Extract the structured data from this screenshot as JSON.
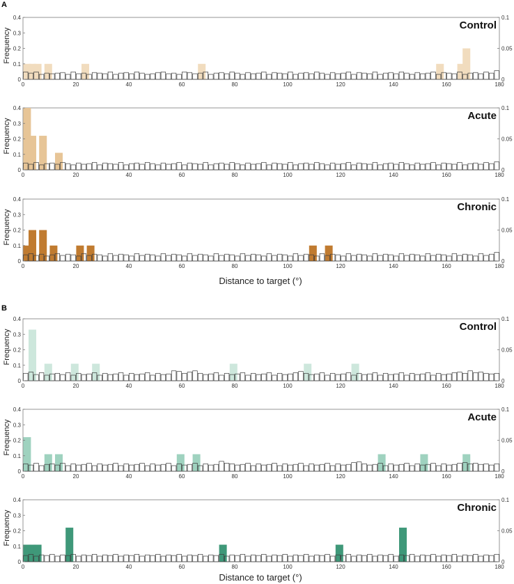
{
  "figure": {
    "panel_a_letter": "A",
    "panel_b_letter": "B",
    "x_axis_title": "Distance to target (°)",
    "y_axis_title": "Frequency"
  },
  "colors": {
    "a_control": "#f1dcbe",
    "a_acute": "#e7c597",
    "a_chronic": "#c07b30",
    "b_control": "#cde7dc",
    "b_acute": "#9fd2bf",
    "b_chronic": "#3f9879",
    "outline": "#3a3a3a",
    "axis": "#7a7a7a"
  },
  "chart_data": [
    {
      "type": "bar",
      "panel": "A",
      "title": "Control",
      "xlabel": "",
      "ylabel": "Frequency",
      "xlim": [
        0,
        180
      ],
      "xticks": [
        "0",
        "20",
        "40",
        "60",
        "80",
        "100",
        "120",
        "140",
        "160",
        "180"
      ],
      "ylim_left": [
        0,
        0.4
      ],
      "yticks_left": [
        "0",
        "0.1",
        "0.2",
        "0.3",
        "0.4"
      ],
      "ylim_right": [
        0,
        0.1
      ],
      "yticks_right": [
        "0",
        "0.05",
        "0.1"
      ],
      "series": [
        {
          "name": "subject",
          "axis": "left",
          "color_key": "a_control",
          "x": [
            0,
            2,
            4,
            8,
            22,
            66,
            156,
            164,
            166
          ],
          "values": [
            0.1,
            0.1,
            0.1,
            0.1,
            0.1,
            0.1,
            0.1,
            0.1,
            0.2
          ]
        },
        {
          "name": "reference",
          "axis": "right",
          "outline": true,
          "values": [
            0.012,
            0.01,
            0.012,
            0.008,
            0.01,
            0.009,
            0.01,
            0.011,
            0.008,
            0.012,
            0.009,
            0.01,
            0.008,
            0.011,
            0.01,
            0.009,
            0.012,
            0.008,
            0.01,
            0.011,
            0.009,
            0.012,
            0.01,
            0.008,
            0.009,
            0.011,
            0.012,
            0.009,
            0.01,
            0.008,
            0.012,
            0.011,
            0.009,
            0.01,
            0.012,
            0.008,
            0.01,
            0.011,
            0.009,
            0.012,
            0.01,
            0.008,
            0.011,
            0.009,
            0.01,
            0.012,
            0.008,
            0.011,
            0.01,
            0.009,
            0.012,
            0.008,
            0.01,
            0.011,
            0.009,
            0.012,
            0.01,
            0.008,
            0.011,
            0.009,
            0.01,
            0.012,
            0.008,
            0.011,
            0.01,
            0.009,
            0.012,
            0.008,
            0.01,
            0.011,
            0.009,
            0.012,
            0.01,
            0.008,
            0.011,
            0.009,
            0.01,
            0.012,
            0.008,
            0.011,
            0.01,
            0.009,
            0.012,
            0.008,
            0.01,
            0.011,
            0.009,
            0.012,
            0.01,
            0.014
          ]
        }
      ]
    },
    {
      "type": "bar",
      "panel": "A",
      "title": "Acute",
      "xlabel": "",
      "ylabel": "Frequency",
      "xlim": [
        0,
        180
      ],
      "xticks": [
        "0",
        "20",
        "40",
        "60",
        "80",
        "100",
        "120",
        "140",
        "160",
        "180"
      ],
      "ylim_left": [
        0,
        0.4
      ],
      "yticks_left": [
        "0",
        "0.1",
        "0.2",
        "0.3",
        "0.4"
      ],
      "ylim_right": [
        0,
        0.1
      ],
      "yticks_right": [
        "0",
        "0.05",
        "0.1"
      ],
      "series": [
        {
          "name": "subject",
          "axis": "left",
          "color_key": "a_acute",
          "x": [
            0,
            2,
            6,
            12
          ],
          "values": [
            0.4,
            0.22,
            0.22,
            0.11
          ]
        },
        {
          "name": "reference",
          "axis": "right",
          "outline": true,
          "values": [
            0.011,
            0.009,
            0.012,
            0.008,
            0.01,
            0.011,
            0.009,
            0.012,
            0.01,
            0.008,
            0.011,
            0.009,
            0.01,
            0.012,
            0.008,
            0.011,
            0.01,
            0.009,
            0.012,
            0.008,
            0.01,
            0.011,
            0.009,
            0.012,
            0.01,
            0.008,
            0.011,
            0.009,
            0.01,
            0.012,
            0.008,
            0.011,
            0.01,
            0.009,
            0.012,
            0.008,
            0.01,
            0.011,
            0.009,
            0.012,
            0.01,
            0.008,
            0.011,
            0.009,
            0.01,
            0.012,
            0.008,
            0.011,
            0.01,
            0.009,
            0.012,
            0.008,
            0.01,
            0.011,
            0.009,
            0.012,
            0.01,
            0.008,
            0.011,
            0.009,
            0.01,
            0.012,
            0.008,
            0.011,
            0.01,
            0.009,
            0.012,
            0.008,
            0.01,
            0.011,
            0.009,
            0.012,
            0.01,
            0.008,
            0.011,
            0.009,
            0.01,
            0.012,
            0.008,
            0.011,
            0.01,
            0.009,
            0.012,
            0.008,
            0.01,
            0.011,
            0.009,
            0.012,
            0.01,
            0.013
          ]
        }
      ]
    },
    {
      "type": "bar",
      "panel": "A",
      "title": "Chronic",
      "xlabel": "Distance to target (°)",
      "ylabel": "Frequency",
      "xlim": [
        0,
        180
      ],
      "xticks": [
        "0",
        "20",
        "40",
        "60",
        "80",
        "100",
        "120",
        "140",
        "160",
        "180"
      ],
      "ylim_left": [
        0,
        0.4
      ],
      "yticks_left": [
        "0",
        "0.1",
        "0.2",
        "0.3",
        "0.4"
      ],
      "ylim_right": [
        0,
        0.1
      ],
      "yticks_right": [
        "0",
        "0.05",
        "0.1"
      ],
      "series": [
        {
          "name": "subject",
          "axis": "left",
          "color_key": "a_chronic",
          "x": [
            0,
            2,
            6,
            10,
            20,
            24,
            108,
            114
          ],
          "values": [
            0.1,
            0.2,
            0.2,
            0.1,
            0.1,
            0.1,
            0.1,
            0.1
          ]
        },
        {
          "name": "reference",
          "axis": "right",
          "outline": true,
          "values": [
            0.01,
            0.012,
            0.009,
            0.011,
            0.008,
            0.01,
            0.012,
            0.009,
            0.011,
            0.01,
            0.008,
            0.012,
            0.009,
            0.011,
            0.01,
            0.008,
            0.012,
            0.009,
            0.011,
            0.01,
            0.008,
            0.012,
            0.009,
            0.011,
            0.01,
            0.008,
            0.012,
            0.009,
            0.011,
            0.01,
            0.008,
            0.012,
            0.009,
            0.011,
            0.01,
            0.008,
            0.012,
            0.009,
            0.011,
            0.01,
            0.008,
            0.012,
            0.009,
            0.011,
            0.01,
            0.008,
            0.012,
            0.009,
            0.011,
            0.01,
            0.008,
            0.012,
            0.009,
            0.011,
            0.01,
            0.008,
            0.012,
            0.009,
            0.011,
            0.01,
            0.008,
            0.012,
            0.009,
            0.011,
            0.01,
            0.008,
            0.012,
            0.009,
            0.011,
            0.01,
            0.008,
            0.012,
            0.009,
            0.011,
            0.01,
            0.008,
            0.012,
            0.009,
            0.011,
            0.01,
            0.008,
            0.012,
            0.009,
            0.011,
            0.01,
            0.008,
            0.012,
            0.009,
            0.011,
            0.014
          ]
        }
      ]
    },
    {
      "type": "bar",
      "panel": "B",
      "title": "Control",
      "xlabel": "",
      "ylabel": "Frequency",
      "xlim": [
        0,
        180
      ],
      "xticks": [
        "0",
        "20",
        "40",
        "60",
        "80",
        "100",
        "120",
        "140",
        "160",
        "180"
      ],
      "ylim_left": [
        0,
        0.4
      ],
      "yticks_left": [
        "0",
        "0.1",
        "0.2",
        "0.3",
        "0.4"
      ],
      "ylim_right": [
        0,
        0.1
      ],
      "yticks_right": [
        "0",
        "0.05",
        "0.1"
      ],
      "series": [
        {
          "name": "subject",
          "axis": "left",
          "color_key": "b_control",
          "x": [
            2,
            8,
            18,
            26,
            78,
            106,
            124
          ],
          "values": [
            0.33,
            0.11,
            0.11,
            0.11,
            0.11,
            0.11,
            0.11
          ]
        },
        {
          "name": "reference",
          "axis": "right",
          "outline": true,
          "values": [
            0.012,
            0.014,
            0.01,
            0.013,
            0.009,
            0.011,
            0.012,
            0.01,
            0.013,
            0.009,
            0.012,
            0.01,
            0.011,
            0.013,
            0.009,
            0.012,
            0.01,
            0.011,
            0.013,
            0.009,
            0.012,
            0.01,
            0.011,
            0.013,
            0.009,
            0.012,
            0.01,
            0.011,
            0.016,
            0.015,
            0.012,
            0.014,
            0.016,
            0.012,
            0.01,
            0.011,
            0.013,
            0.009,
            0.012,
            0.01,
            0.011,
            0.013,
            0.009,
            0.012,
            0.01,
            0.011,
            0.013,
            0.009,
            0.012,
            0.01,
            0.011,
            0.013,
            0.015,
            0.012,
            0.01,
            0.011,
            0.013,
            0.009,
            0.012,
            0.01,
            0.011,
            0.013,
            0.009,
            0.012,
            0.01,
            0.011,
            0.013,
            0.009,
            0.012,
            0.01,
            0.011,
            0.013,
            0.009,
            0.012,
            0.01,
            0.011,
            0.013,
            0.009,
            0.012,
            0.01,
            0.011,
            0.013,
            0.014,
            0.012,
            0.016,
            0.013,
            0.014,
            0.012,
            0.011,
            0.012
          ]
        }
      ]
    },
    {
      "type": "bar",
      "panel": "B",
      "title": "Acute",
      "xlabel": "",
      "ylabel": "Frequency",
      "xlim": [
        0,
        180
      ],
      "xticks": [
        "0",
        "20",
        "40",
        "60",
        "80",
        "100",
        "120",
        "140",
        "160",
        "180"
      ],
      "ylim_left": [
        0,
        0.4
      ],
      "yticks_left": [
        "0",
        "0.1",
        "0.2",
        "0.3",
        "0.4"
      ],
      "ylim_right": [
        0,
        0.1
      ],
      "yticks_right": [
        "0",
        "0.05",
        "0.1"
      ],
      "series": [
        {
          "name": "subject",
          "axis": "left",
          "color_key": "b_acute",
          "x": [
            0,
            8,
            12,
            58,
            64,
            134,
            150,
            166
          ],
          "values": [
            0.22,
            0.11,
            0.11,
            0.11,
            0.11,
            0.11,
            0.11,
            0.11
          ]
        },
        {
          "name": "reference",
          "axis": "right",
          "outline": true,
          "values": [
            0.012,
            0.01,
            0.013,
            0.009,
            0.011,
            0.012,
            0.01,
            0.013,
            0.009,
            0.012,
            0.01,
            0.011,
            0.013,
            0.009,
            0.012,
            0.01,
            0.011,
            0.013,
            0.009,
            0.012,
            0.01,
            0.011,
            0.013,
            0.009,
            0.012,
            0.01,
            0.011,
            0.013,
            0.009,
            0.012,
            0.01,
            0.011,
            0.013,
            0.009,
            0.012,
            0.01,
            0.011,
            0.016,
            0.013,
            0.012,
            0.01,
            0.011,
            0.013,
            0.009,
            0.012,
            0.01,
            0.011,
            0.013,
            0.009,
            0.012,
            0.01,
            0.011,
            0.013,
            0.009,
            0.012,
            0.01,
            0.011,
            0.013,
            0.009,
            0.012,
            0.01,
            0.011,
            0.014,
            0.015,
            0.012,
            0.01,
            0.011,
            0.013,
            0.009,
            0.012,
            0.01,
            0.011,
            0.013,
            0.009,
            0.012,
            0.01,
            0.011,
            0.013,
            0.009,
            0.012,
            0.01,
            0.011,
            0.013,
            0.014,
            0.012,
            0.013,
            0.011,
            0.012,
            0.01,
            0.012
          ]
        }
      ]
    },
    {
      "type": "bar",
      "panel": "B",
      "title": "Chronic",
      "xlabel": "Distance to target (°)",
      "ylabel": "Frequency",
      "xlim": [
        0,
        180
      ],
      "xticks": [
        "0",
        "20",
        "40",
        "60",
        "80",
        "100",
        "120",
        "140",
        "160",
        "180"
      ],
      "ylim_left": [
        0,
        0.4
      ],
      "yticks_left": [
        "0",
        "0.1",
        "0.2",
        "0.3",
        "0.4"
      ],
      "ylim_right": [
        0,
        0.1
      ],
      "yticks_right": [
        "0",
        "0.05",
        "0.1"
      ],
      "series": [
        {
          "name": "subject",
          "axis": "left",
          "color_key": "b_chronic",
          "x": [
            0,
            2,
            4,
            16,
            74,
            118,
            142
          ],
          "values": [
            0.11,
            0.11,
            0.11,
            0.22,
            0.11,
            0.11,
            0.22
          ]
        },
        {
          "name": "reference",
          "axis": "right",
          "outline": true,
          "values": [
            0.01,
            0.012,
            0.009,
            0.011,
            0.01,
            0.012,
            0.009,
            0.011,
            0.01,
            0.012,
            0.009,
            0.011,
            0.01,
            0.012,
            0.009,
            0.011,
            0.01,
            0.012,
            0.009,
            0.011,
            0.01,
            0.012,
            0.009,
            0.011,
            0.01,
            0.012,
            0.009,
            0.011,
            0.01,
            0.012,
            0.009,
            0.011,
            0.01,
            0.012,
            0.009,
            0.011,
            0.01,
            0.012,
            0.009,
            0.011,
            0.01,
            0.012,
            0.009,
            0.011,
            0.01,
            0.012,
            0.009,
            0.011,
            0.01,
            0.012,
            0.009,
            0.011,
            0.01,
            0.012,
            0.009,
            0.011,
            0.01,
            0.012,
            0.009,
            0.011,
            0.01,
            0.012,
            0.009,
            0.011,
            0.01,
            0.012,
            0.009,
            0.011,
            0.01,
            0.012,
            0.009,
            0.011,
            0.01,
            0.012,
            0.009,
            0.011,
            0.01,
            0.012,
            0.009,
            0.011,
            0.01,
            0.012,
            0.009,
            0.011,
            0.01,
            0.012,
            0.009,
            0.011,
            0.01,
            0.012
          ]
        }
      ]
    }
  ]
}
